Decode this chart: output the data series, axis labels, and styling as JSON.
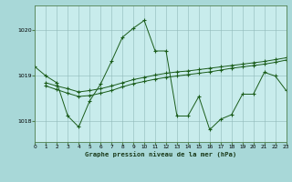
{
  "title": "Graphe pression niveau de la mer (hPa)",
  "fig_bg_color": "#a8d8d8",
  "plot_bg_color": "#c8ecec",
  "line_color": "#1a5c1a",
  "grid_color": "#90b8b8",
  "spine_color": "#508050",
  "xlim": [
    0,
    23
  ],
  "ylim": [
    1017.55,
    1020.55
  ],
  "yticks": [
    1018,
    1019,
    1020
  ],
  "xticks": [
    0,
    1,
    2,
    3,
    4,
    5,
    6,
    7,
    8,
    9,
    10,
    11,
    12,
    13,
    14,
    15,
    16,
    17,
    18,
    19,
    20,
    21,
    22,
    23
  ],
  "xtick_labels": [
    "0",
    "1",
    "2",
    "3",
    "4",
    "5",
    "6",
    "7",
    "8",
    "9",
    "10",
    "11",
    "12",
    "13",
    "14",
    "15",
    "16",
    "17",
    "18",
    "19",
    "20",
    "21",
    "22",
    "23"
  ],
  "series_main_x": [
    0,
    1,
    2,
    3,
    4,
    5,
    6,
    7,
    8,
    9,
    10,
    11,
    12,
    13,
    14,
    15,
    16,
    17,
    18,
    19,
    20,
    21,
    22,
    23
  ],
  "series_main_y": [
    1019.2,
    1019.0,
    1018.85,
    1018.12,
    1017.88,
    1018.45,
    1018.82,
    1019.32,
    1019.85,
    1020.05,
    1020.22,
    1019.55,
    1019.55,
    1018.12,
    1018.12,
    1018.55,
    1017.82,
    1018.05,
    1018.15,
    1018.6,
    1018.6,
    1019.08,
    1019.0,
    1018.68
  ],
  "series2_x": [
    1,
    2,
    3,
    4,
    5,
    6,
    7,
    8,
    9,
    10,
    11,
    12,
    13,
    14,
    15,
    16,
    17,
    18,
    19,
    20,
    21,
    22,
    23
  ],
  "series2_y": [
    1018.85,
    1018.78,
    1018.72,
    1018.65,
    1018.68,
    1018.72,
    1018.78,
    1018.85,
    1018.92,
    1018.97,
    1019.02,
    1019.06,
    1019.09,
    1019.11,
    1019.14,
    1019.17,
    1019.2,
    1019.23,
    1019.26,
    1019.29,
    1019.32,
    1019.36,
    1019.4
  ],
  "series3_x": [
    1,
    2,
    3,
    4,
    5,
    6,
    7,
    8,
    9,
    10,
    11,
    12,
    13,
    14,
    15,
    16,
    17,
    18,
    19,
    20,
    21,
    22,
    23
  ],
  "series3_y": [
    1018.78,
    1018.7,
    1018.62,
    1018.55,
    1018.57,
    1018.62,
    1018.68,
    1018.76,
    1018.83,
    1018.88,
    1018.93,
    1018.97,
    1019.0,
    1019.03,
    1019.06,
    1019.09,
    1019.13,
    1019.17,
    1019.2,
    1019.23,
    1019.26,
    1019.3,
    1019.35
  ]
}
